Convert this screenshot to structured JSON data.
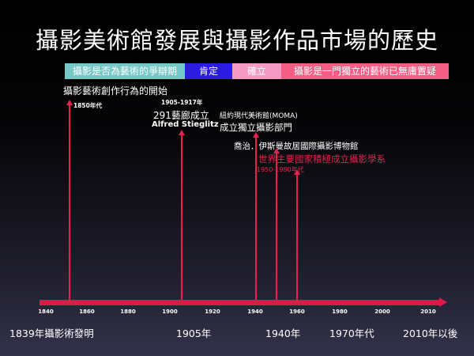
{
  "title": "攝影美術館發展與攝影作品市場的歷史",
  "bands": [
    {
      "label": "攝影是否為藝術的爭辯期",
      "color": "#75c8c6"
    },
    {
      "label": "肯定",
      "color": "#2b1ce0"
    },
    {
      "label": "確立",
      "color": "#f59bc3"
    },
    {
      "label": "攝影是一門獨立的藝術已無庸置疑",
      "color": "#f25e84"
    }
  ],
  "annotations": {
    "a1850_text": "攝影藝術創作行為的開始",
    "a1850_year": "1850年代",
    "a1905_range": "1905-1917年",
    "a1905_line1": "291藝廊成立",
    "a1905_line2": "Alfred Stieglitz",
    "a1940_line1": "紐約現代美術館(MOMA)",
    "a1940_line2": "成立獨立攝影部門",
    "a1950_text": "喬治．伊斯曼故居國際攝影博物館",
    "a1960_text": "世界主要國家積極成立攝影學系",
    "a1960_range": "1950-1980年代"
  },
  "axis_ticks": [
    "1840",
    "1860",
    "1880",
    "1900",
    "1920",
    "1940",
    "1960",
    "1980",
    "2000",
    "2010"
  ],
  "eras": {
    "e1839": "1839年攝影術發明",
    "e1905": "1905年",
    "e1940": "1940年",
    "e1970": "1970年代",
    "e2010": "2010年以後"
  },
  "colors": {
    "accent": "#e8204f",
    "axis": "#e01848"
  }
}
